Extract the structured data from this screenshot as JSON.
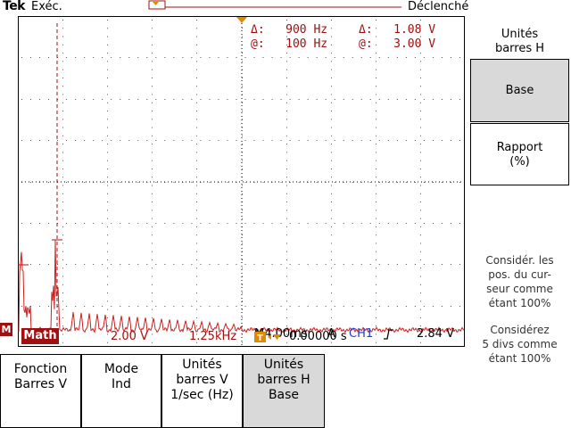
{
  "header": {
    "logo": "Tek",
    "run_state": "Exéc.",
    "trigger_label": "Déclenché"
  },
  "readouts": {
    "delta_h": "Δ:   900 Hz",
    "at_h": "@:   100 Hz",
    "delta_v": "Δ:   1.08 V",
    "at_v": "@:   3.00 V"
  },
  "side_menu": {
    "title_line1": "Unités",
    "title_line2": "barres H",
    "base_label": "Base",
    "ratio_line1": "Rapport",
    "ratio_line2": "(%)",
    "note1_line1": "Considér. les",
    "note1_line2": "pos. du cur-",
    "note1_line3": "seur comme",
    "note1_line4": "étant 100%",
    "note2_line1": "Considérez",
    "note2_line2": "5 divs comme",
    "note2_line3": "étant 100%"
  },
  "status": {
    "timebase": "M4.00ms",
    "trigger_mode": "A",
    "channel": "CH1",
    "trigger_level": "2.84 V",
    "math_label": "Math",
    "math_scale": "2.00 V",
    "math_freq": "1.25kHz",
    "trigger_position": "0.00000 s",
    "marker": "M"
  },
  "bottom_menu": {
    "b1_line1": "Fonction",
    "b1_line2": "Barres V",
    "b2_line1": "Mode",
    "b2_line2": "Ind",
    "b3_line1": "Unités",
    "b3_line2": "barres V",
    "b3_line3": "1/sec (Hz)",
    "b4_line1": "Unités",
    "b4_line2": "barres H",
    "b4_line3": "Base"
  },
  "colors": {
    "trace": "#cc1f1f",
    "readout": "#a01010",
    "selected": "#d9d9d9",
    "grid": "#000000"
  }
}
